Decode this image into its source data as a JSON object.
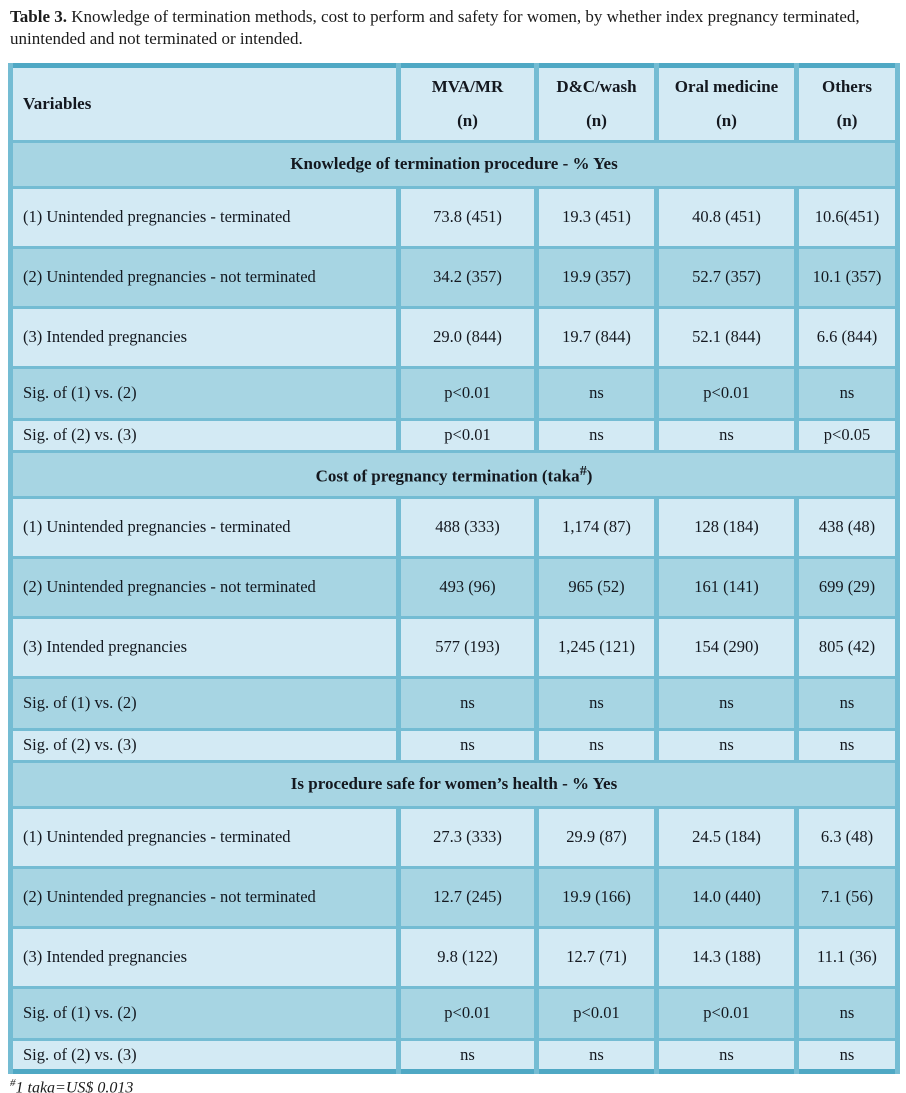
{
  "title": {
    "label": "Table 3.",
    "text": " Knowledge of termination methods, cost to perform and safety for women, by whether index pregnancy terminated, unintended and not terminated or intended."
  },
  "table": {
    "columns": [
      {
        "name": "Variables",
        "unit": ""
      },
      {
        "name": "MVA/MR",
        "unit": "(n)"
      },
      {
        "name": "D&C/wash",
        "unit": "(n)"
      },
      {
        "name": "Oral medicine",
        "unit": "(n)"
      },
      {
        "name": "Others",
        "unit": "(n)"
      }
    ],
    "sections": [
      {
        "header_pre": "Knowledge of termination procedure - % Yes",
        "header_sup": "",
        "header_post": "",
        "rows": [
          {
            "label": "(1) Unintended pregnancies - terminated",
            "values": [
              "73.8 (451)",
              "19.3 (451)",
              "40.8 (451)",
              "10.6(451)"
            ]
          },
          {
            "label": "(2) Unintended pregnancies - not terminated",
            "values": [
              "34.2 (357)",
              "19.9 (357)",
              "52.7 (357)",
              "10.1 (357)"
            ]
          },
          {
            "label": "(3) Intended pregnancies",
            "values": [
              "29.0 (844)",
              "19.7 (844)",
              "52.1 (844)",
              "6.6 (844)"
            ]
          },
          {
            "label": "Sig. of (1) vs. (2)",
            "values": [
              "p<0.01",
              "ns",
              "p<0.01",
              "ns"
            ]
          },
          {
            "label": "Sig. of (2) vs. (3)",
            "values": [
              "p<0.01",
              "ns",
              "ns",
              "p<0.05"
            ]
          }
        ]
      },
      {
        "header_pre": "Cost of pregnancy termination (taka",
        "header_sup": "#",
        "header_post": ")",
        "rows": [
          {
            "label": "(1) Unintended pregnancies - terminated",
            "values": [
              "488 (333)",
              "1,174 (87)",
              "128 (184)",
              "438 (48)"
            ]
          },
          {
            "label": "(2) Unintended pregnancies - not terminated",
            "values": [
              "493 (96)",
              "965 (52)",
              "161 (141)",
              "699 (29)"
            ]
          },
          {
            "label": "(3) Intended pregnancies",
            "values": [
              "577 (193)",
              "1,245 (121)",
              "154 (290)",
              "805 (42)"
            ]
          },
          {
            "label": "Sig. of (1) vs. (2)",
            "values": [
              "ns",
              "ns",
              "ns",
              "ns"
            ]
          },
          {
            "label": "Sig. of (2) vs. (3)",
            "values": [
              "ns",
              "ns",
              "ns",
              "ns"
            ]
          }
        ]
      },
      {
        "header_pre": "Is procedure safe for women’s health - % Yes",
        "header_sup": "",
        "header_post": "",
        "rows": [
          {
            "label": "(1) Unintended pregnancies - terminated",
            "values": [
              "27.3 (333)",
              "29.9 (87)",
              "24.5 (184)",
              "6.3 (48)"
            ]
          },
          {
            "label": "(2) Unintended pregnancies - not terminated",
            "values": [
              "12.7 (245)",
              "19.9 (166)",
              "14.0 (440)",
              "7.1 (56)"
            ]
          },
          {
            "label": "(3) Intended pregnancies",
            "values": [
              "9.8 (122)",
              "12.7 (71)",
              "14.3 (188)",
              "11.1 (36)"
            ]
          },
          {
            "label": "Sig. of (1) vs. (2)",
            "values": [
              "p<0.01",
              "p<0.01",
              "p<0.01",
              "ns"
            ]
          },
          {
            "label": "Sig. of (2) vs. (3)",
            "values": [
              "ns",
              "ns",
              "ns",
              "ns"
            ]
          }
        ]
      }
    ]
  },
  "footnote": {
    "sup": "#",
    "text": "1 taka=US$ 0.013"
  },
  "colors": {
    "cell_light": "#d3eaf4",
    "cell_dark": "#a7d5e3",
    "border_inner": "#74bcd3",
    "border_outer": "#4fa8c4",
    "text": "#14181f"
  }
}
